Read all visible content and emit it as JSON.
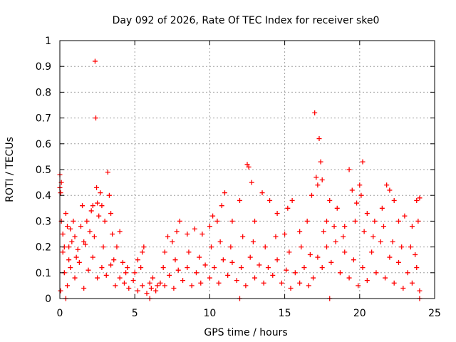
{
  "chart_data": {
    "type": "scatter",
    "title": "Day 092 of 2026, Rate Of TEC Index for receiver ske0",
    "xlabel": "GPS time / hours",
    "ylabel": "ROTI / TECUs",
    "xlim": [
      0,
      25
    ],
    "ylim": [
      0,
      1
    ],
    "xticks": [
      0,
      5,
      10,
      15,
      20,
      25
    ],
    "xtick_labels": [
      "0",
      "5",
      "10",
      "15",
      "20",
      "25"
    ],
    "yticks": [
      0,
      0.1,
      0.2,
      0.3,
      0.4,
      0.5,
      0.6,
      0.7,
      0.8,
      0.9,
      1
    ],
    "ytick_labels": [
      "0",
      "0.1",
      "0.2",
      "0.3",
      "0.4",
      "0.5",
      "0.6",
      "0.7",
      "0.8",
      "0.9",
      "1"
    ],
    "grid": true,
    "marker": "+",
    "color": "#ff0000",
    "series": [
      {
        "name": "ROTI",
        "points": [
          [
            0.0,
            0.48
          ],
          [
            0.0,
            0.43
          ],
          [
            0.05,
            0.41
          ],
          [
            0.1,
            0.45
          ],
          [
            0.1,
            0.3
          ],
          [
            0.2,
            0.25
          ],
          [
            0.3,
            0.2
          ],
          [
            0.4,
            0.33
          ],
          [
            0.5,
            0.28
          ],
          [
            0.6,
            0.15
          ],
          [
            0.7,
            0.27
          ],
          [
            0.8,
            0.22
          ],
          [
            0.9,
            0.3
          ],
          [
            1.0,
            0.24
          ],
          [
            1.2,
            0.19
          ],
          [
            1.4,
            0.28
          ],
          [
            1.5,
            0.36
          ],
          [
            1.6,
            0.22
          ],
          [
            1.8,
            0.3
          ],
          [
            2.0,
            0.26
          ],
          [
            2.1,
            0.34
          ],
          [
            2.2,
            0.36
          ],
          [
            2.35,
            0.92
          ],
          [
            2.4,
            0.7
          ],
          [
            2.45,
            0.43
          ],
          [
            2.5,
            0.37
          ],
          [
            2.6,
            0.32
          ],
          [
            2.7,
            0.41
          ],
          [
            2.8,
            0.36
          ],
          [
            3.0,
            0.3
          ],
          [
            3.2,
            0.49
          ],
          [
            3.3,
            0.4
          ],
          [
            3.4,
            0.33
          ],
          [
            3.5,
            0.25
          ],
          [
            3.8,
            0.2
          ],
          [
            4.0,
            0.26
          ],
          [
            4.2,
            0.14
          ],
          [
            4.5,
            0.12
          ],
          [
            5.0,
            0.1
          ],
          [
            5.2,
            0.15
          ],
          [
            5.5,
            0.18
          ],
          [
            5.6,
            0.2
          ],
          [
            6.0,
            0.06
          ],
          [
            6.5,
            0.05
          ],
          [
            7.0,
            0.18
          ],
          [
            7.2,
            0.24
          ],
          [
            7.5,
            0.22
          ],
          [
            7.8,
            0.26
          ],
          [
            8.0,
            0.3
          ],
          [
            8.5,
            0.25
          ],
          [
            9.0,
            0.27
          ],
          [
            9.5,
            0.25
          ],
          [
            10.0,
            0.28
          ],
          [
            10.2,
            0.32
          ],
          [
            10.5,
            0.3
          ],
          [
            10.8,
            0.36
          ],
          [
            11.0,
            0.41
          ],
          [
            11.5,
            0.3
          ],
          [
            12.0,
            0.38
          ],
          [
            12.5,
            0.52
          ],
          [
            12.6,
            0.51
          ],
          [
            12.8,
            0.45
          ],
          [
            13.0,
            0.3
          ],
          [
            13.5,
            0.41
          ],
          [
            14.0,
            0.38
          ],
          [
            14.5,
            0.33
          ],
          [
            15.0,
            0.25
          ],
          [
            15.2,
            0.35
          ],
          [
            15.5,
            0.38
          ],
          [
            16.0,
            0.26
          ],
          [
            16.5,
            0.3
          ],
          [
            16.8,
            0.4
          ],
          [
            17.0,
            0.72
          ],
          [
            17.1,
            0.47
          ],
          [
            17.2,
            0.44
          ],
          [
            17.3,
            0.62
          ],
          [
            17.4,
            0.53
          ],
          [
            17.5,
            0.46
          ],
          [
            17.8,
            0.3
          ],
          [
            18.0,
            0.38
          ],
          [
            18.5,
            0.35
          ],
          [
            19.0,
            0.28
          ],
          [
            19.3,
            0.5
          ],
          [
            19.5,
            0.42
          ],
          [
            19.8,
            0.37
          ],
          [
            20.0,
            0.44
          ],
          [
            20.1,
            0.4
          ],
          [
            20.2,
            0.53
          ],
          [
            20.5,
            0.33
          ],
          [
            21.0,
            0.3
          ],
          [
            21.5,
            0.35
          ],
          [
            21.8,
            0.44
          ],
          [
            22.0,
            0.42
          ],
          [
            22.3,
            0.38
          ],
          [
            22.6,
            0.3
          ],
          [
            23.0,
            0.32
          ],
          [
            23.5,
            0.28
          ],
          [
            23.8,
            0.38
          ],
          [
            24.0,
            0.39
          ],
          [
            23.9,
            0.3
          ],
          [
            0.05,
            0.03
          ],
          [
            0.3,
            0.1
          ],
          [
            0.5,
            0.05
          ],
          [
            0.7,
            0.12
          ],
          [
            1.0,
            0.08
          ],
          [
            1.3,
            0.14
          ],
          [
            1.6,
            0.04
          ],
          [
            1.9,
            0.11
          ],
          [
            2.2,
            0.16
          ],
          [
            2.5,
            0.08
          ],
          [
            2.8,
            0.12
          ],
          [
            3.1,
            0.09
          ],
          [
            3.4,
            0.13
          ],
          [
            3.7,
            0.05
          ],
          [
            4.0,
            0.08
          ],
          [
            4.3,
            0.06
          ],
          [
            4.6,
            0.04
          ],
          [
            4.9,
            0.07
          ],
          [
            5.2,
            0.03
          ],
          [
            5.5,
            0.05
          ],
          [
            5.8,
            0.02
          ],
          [
            6.1,
            0.04
          ],
          [
            6.4,
            0.03
          ],
          [
            6.7,
            0.06
          ],
          [
            7.0,
            0.05
          ],
          [
            7.3,
            0.09
          ],
          [
            7.6,
            0.04
          ],
          [
            7.9,
            0.11
          ],
          [
            8.2,
            0.07
          ],
          [
            8.5,
            0.12
          ],
          [
            8.8,
            0.05
          ],
          [
            9.1,
            0.1
          ],
          [
            9.4,
            0.06
          ],
          [
            9.7,
            0.13
          ],
          [
            10.0,
            0.08
          ],
          [
            10.3,
            0.12
          ],
          [
            10.6,
            0.06
          ],
          [
            10.9,
            0.15
          ],
          [
            11.2,
            0.09
          ],
          [
            11.5,
            0.14
          ],
          [
            11.8,
            0.07
          ],
          [
            12.1,
            0.12
          ],
          [
            12.4,
            0.05
          ],
          [
            12.7,
            0.16
          ],
          [
            13.0,
            0.08
          ],
          [
            13.3,
            0.13
          ],
          [
            13.6,
            0.06
          ],
          [
            13.9,
            0.12
          ],
          [
            14.2,
            0.09
          ],
          [
            14.5,
            0.15
          ],
          [
            14.8,
            0.06
          ],
          [
            15.1,
            0.11
          ],
          [
            15.4,
            0.04
          ],
          [
            15.7,
            0.1
          ],
          [
            16.0,
            0.06
          ],
          [
            16.3,
            0.12
          ],
          [
            16.6,
            0.05
          ],
          [
            16.9,
            0.08
          ],
          [
            17.2,
            0.16
          ],
          [
            17.5,
            0.12
          ],
          [
            17.8,
            0.2
          ],
          [
            18.1,
            0.14
          ],
          [
            18.4,
            0.22
          ],
          [
            18.7,
            0.1
          ],
          [
            19.0,
            0.18
          ],
          [
            19.3,
            0.08
          ],
          [
            19.6,
            0.15
          ],
          [
            19.9,
            0.05
          ],
          [
            20.2,
            0.12
          ],
          [
            20.5,
            0.07
          ],
          [
            20.8,
            0.18
          ],
          [
            21.1,
            0.1
          ],
          [
            21.4,
            0.22
          ],
          [
            21.7,
            0.08
          ],
          [
            22.0,
            0.16
          ],
          [
            22.3,
            0.06
          ],
          [
            22.6,
            0.14
          ],
          [
            22.9,
            0.04
          ],
          [
            23.2,
            0.1
          ],
          [
            23.5,
            0.06
          ],
          [
            23.8,
            0.12
          ],
          [
            24.0,
            0.03
          ],
          [
            0.2,
            0.18
          ],
          [
            0.6,
            0.2
          ],
          [
            1.1,
            0.16
          ],
          [
            1.7,
            0.21
          ],
          [
            2.3,
            0.24
          ],
          [
            2.9,
            0.2
          ],
          [
            3.6,
            0.15
          ],
          [
            4.4,
            0.1
          ],
          [
            5.4,
            0.12
          ],
          [
            6.2,
            0.08
          ],
          [
            6.9,
            0.12
          ],
          [
            7.7,
            0.15
          ],
          [
            8.6,
            0.18
          ],
          [
            9.3,
            0.16
          ],
          [
            10.1,
            0.2
          ],
          [
            10.7,
            0.22
          ],
          [
            11.4,
            0.2
          ],
          [
            12.2,
            0.24
          ],
          [
            12.9,
            0.22
          ],
          [
            13.7,
            0.2
          ],
          [
            14.4,
            0.24
          ],
          [
            15.3,
            0.18
          ],
          [
            16.1,
            0.2
          ],
          [
            16.7,
            0.17
          ],
          [
            17.6,
            0.26
          ],
          [
            18.3,
            0.28
          ],
          [
            18.9,
            0.24
          ],
          [
            19.7,
            0.3
          ],
          [
            20.3,
            0.26
          ],
          [
            20.9,
            0.24
          ],
          [
            21.6,
            0.28
          ],
          [
            22.2,
            0.22
          ],
          [
            22.8,
            0.2
          ],
          [
            23.4,
            0.2
          ],
          [
            23.7,
            0.17
          ],
          [
            0.4,
            0.0
          ],
          [
            6.0,
            0.0
          ],
          [
            12.0,
            0.0
          ],
          [
            18.0,
            0.0
          ],
          [
            24.0,
            0.0
          ]
        ]
      }
    ]
  }
}
